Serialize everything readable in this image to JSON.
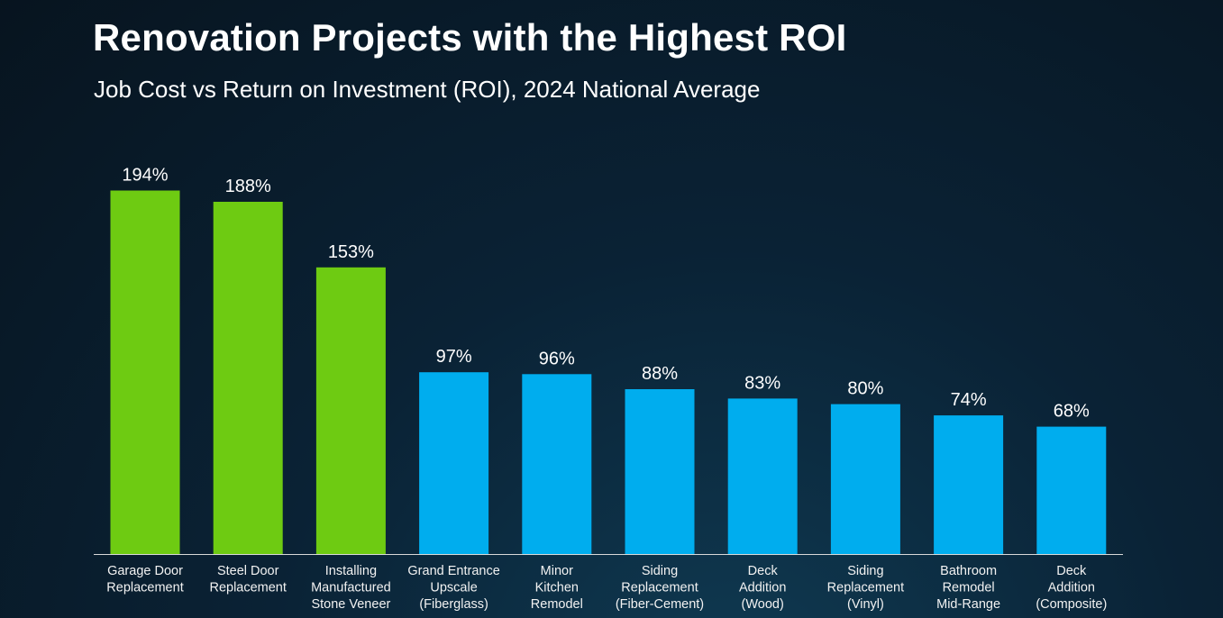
{
  "chart_data": {
    "type": "bar",
    "title": "Renovation Projects with the Highest ROI",
    "subtitle": "Job Cost vs Return on Investment (ROI), 2024 National Average",
    "categories": [
      [
        "Garage Door",
        "Replacement"
      ],
      [
        "Steel Door",
        "Replacement"
      ],
      [
        "Installing",
        "Manufactured",
        "Stone Veneer"
      ],
      [
        "Grand Entrance",
        "Upscale",
        "(Fiberglass)"
      ],
      [
        "Minor",
        "Kitchen",
        "Remodel"
      ],
      [
        "Siding",
        "Replacement",
        "(Fiber-Cement)"
      ],
      [
        "Deck",
        "Addition",
        "(Wood)"
      ],
      [
        "Siding",
        "Replacement",
        "(Vinyl)"
      ],
      [
        "Bathroom",
        "Remodel",
        "Mid-Range"
      ],
      [
        "Deck",
        "Addition",
        "(Composite)"
      ]
    ],
    "values": [
      194,
      188,
      153,
      97,
      96,
      88,
      83,
      80,
      74,
      68
    ],
    "value_labels": [
      "194%",
      "188%",
      "153%",
      "97%",
      "96%",
      "88%",
      "83%",
      "80%",
      "74%",
      "68%"
    ],
    "highlight_count": 3,
    "colors": {
      "highlight": "#6ecb12",
      "default": "#00adee",
      "axis": "#d9d9d9",
      "text": "#ffffff",
      "category_text": "#f2f2f2"
    },
    "xlabel": "",
    "ylabel": "",
    "ylim": [
      0,
      200
    ],
    "grid": false,
    "legend": "none"
  }
}
